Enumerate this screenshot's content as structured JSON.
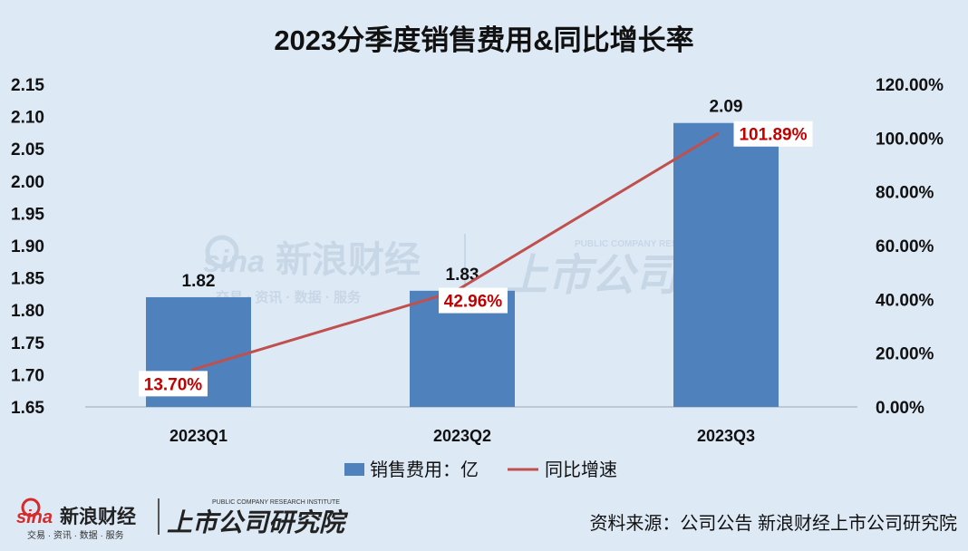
{
  "chart_data": {
    "type": "bar",
    "title": "2023分季度销售费用&同比增长率",
    "categories": [
      "2023Q1",
      "2023Q2",
      "2023Q3"
    ],
    "series": [
      {
        "name": "销售费用：亿",
        "type": "bar",
        "axis": "left",
        "color": "#4f81bd",
        "values": [
          1.82,
          1.83,
          2.09
        ],
        "labels": [
          "1.82",
          "1.83",
          "2.09"
        ]
      },
      {
        "name": "同比增速",
        "type": "line",
        "axis": "right",
        "color": "#c0504d",
        "values": [
          13.7,
          42.96,
          101.89
        ],
        "labels": [
          "13.70%",
          "42.96%",
          "101.89%"
        ]
      }
    ],
    "y_left": {
      "ylim": [
        1.65,
        2.15
      ],
      "ticks": [
        "2.15",
        "2.10",
        "2.05",
        "2.00",
        "1.95",
        "1.90",
        "1.85",
        "1.80",
        "1.75",
        "1.70",
        "1.65"
      ]
    },
    "y_right": {
      "ylim": [
        0,
        120
      ],
      "ticks": [
        "120.00%",
        "100.00%",
        "80.00%",
        "60.00%",
        "40.00%",
        "20.00%",
        "0.00%"
      ]
    },
    "grid": false,
    "legend_position": "bottom"
  },
  "source": "资料来源：公司公告 新浪财经上市公司研究院",
  "logo": {
    "brand": "新浪财经",
    "sina": "sina",
    "sub": "交易 · 资讯 · 数据 · 服务",
    "institute": "上市公司研究院",
    "institute_en": "PUBLIC COMPANY RESEARCH INSTITUTE"
  },
  "watermark": {
    "brand": "新浪财经",
    "sina": "sina",
    "sub": "交易 · 资讯 · 数据 · 服务",
    "institute": "上市公司研究",
    "institute_en": "PUBLIC COMPANY RESEARCH INSTITUTE"
  },
  "colors": {
    "background": "#dde9f5",
    "bar": "#4f81bd",
    "line": "#c0504d",
    "pct_label": "#c00000"
  }
}
